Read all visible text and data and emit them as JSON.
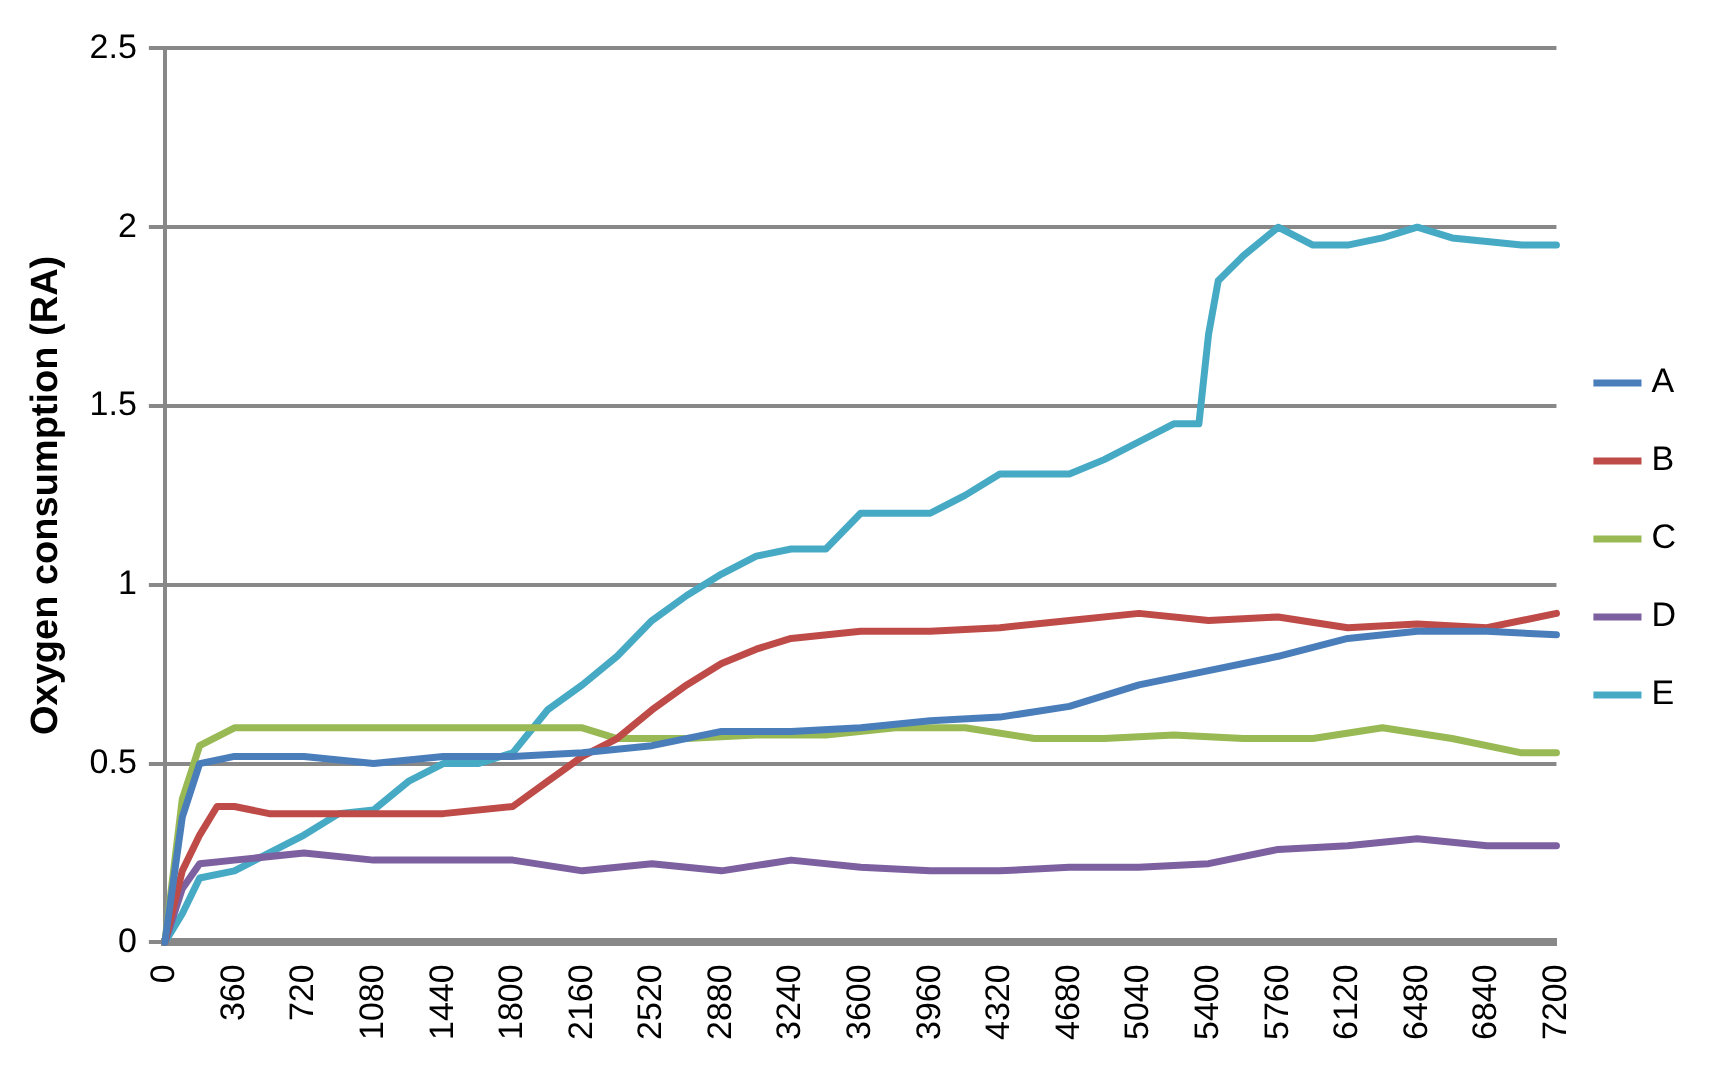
{
  "chart_data": {
    "type": "line",
    "ylabel": "Oxygen consumption (RA)",
    "xlim": [
      0,
      7200
    ],
    "xticks": [
      0,
      360,
      720,
      1080,
      1440,
      1800,
      2160,
      2520,
      2880,
      3240,
      3600,
      3960,
      4320,
      4680,
      5040,
      5400,
      5760,
      6120,
      6480,
      6840,
      7200
    ],
    "ylim": [
      0,
      2.5
    ],
    "yticks": [
      0,
      0.5,
      1,
      1.5,
      2,
      2.5
    ],
    "grid": "y",
    "legend": "right",
    "marker": "none",
    "line_style": "solid",
    "series": [
      {
        "name": "A",
        "color": "#4a7ebb",
        "x": [
          0,
          90,
          180,
          360,
          720,
          1080,
          1440,
          1800,
          2160,
          2520,
          2880,
          3240,
          3600,
          3960,
          4320,
          4680,
          5040,
          5400,
          5760,
          6120,
          6480,
          6840,
          7200
        ],
        "values": [
          0,
          0.35,
          0.5,
          0.52,
          0.52,
          0.5,
          0.52,
          0.52,
          0.53,
          0.55,
          0.59,
          0.59,
          0.6,
          0.62,
          0.63,
          0.66,
          0.72,
          0.76,
          0.8,
          0.85,
          0.87,
          0.87,
          0.86
        ]
      },
      {
        "name": "B",
        "color": "#be4b48",
        "x": [
          0,
          90,
          180,
          270,
          360,
          540,
          1080,
          1440,
          1800,
          1980,
          2160,
          2340,
          2520,
          2700,
          2880,
          3060,
          3240,
          3600,
          3960,
          4320,
          4680,
          5040,
          5400,
          5760,
          6120,
          6480,
          6840,
          7200
        ],
        "values": [
          0,
          0.2,
          0.3,
          0.38,
          0.38,
          0.36,
          0.36,
          0.36,
          0.38,
          0.45,
          0.52,
          0.57,
          0.65,
          0.72,
          0.78,
          0.82,
          0.85,
          0.87,
          0.87,
          0.88,
          0.9,
          0.92,
          0.9,
          0.91,
          0.88,
          0.89,
          0.88,
          0.92
        ]
      },
      {
        "name": "C",
        "color": "#98b954",
        "x": [
          0,
          90,
          180,
          360,
          720,
          1080,
          1440,
          1800,
          2160,
          2340,
          2700,
          3060,
          3420,
          3780,
          4140,
          4500,
          4860,
          5220,
          5580,
          5940,
          6300,
          6660,
          7020,
          7200
        ],
        "values": [
          0,
          0.4,
          0.55,
          0.6,
          0.6,
          0.6,
          0.6,
          0.6,
          0.6,
          0.57,
          0.57,
          0.58,
          0.58,
          0.6,
          0.6,
          0.57,
          0.57,
          0.58,
          0.57,
          0.57,
          0.6,
          0.57,
          0.53,
          0.53
        ]
      },
      {
        "name": "D",
        "color": "#7d60a0",
        "x": [
          0,
          90,
          180,
          360,
          720,
          1080,
          1440,
          1800,
          2160,
          2520,
          2880,
          3240,
          3600,
          3960,
          4320,
          4680,
          5040,
          5400,
          5760,
          6120,
          6480,
          6840,
          7200
        ],
        "values": [
          0,
          0.15,
          0.22,
          0.23,
          0.25,
          0.23,
          0.23,
          0.23,
          0.2,
          0.22,
          0.2,
          0.23,
          0.21,
          0.2,
          0.2,
          0.21,
          0.21,
          0.22,
          0.26,
          0.27,
          0.29,
          0.27,
          0.27
        ]
      },
      {
        "name": "E",
        "color": "#46aac5",
        "x": [
          0,
          90,
          180,
          360,
          540,
          720,
          900,
          1080,
          1260,
          1440,
          1620,
          1800,
          1980,
          2160,
          2340,
          2520,
          2700,
          2880,
          3060,
          3240,
          3420,
          3600,
          3780,
          3960,
          4140,
          4320,
          4500,
          4680,
          4860,
          5040,
          5220,
          5350,
          5400,
          5450,
          5580,
          5760,
          5940,
          6120,
          6300,
          6480,
          6660,
          6840,
          7020,
          7200
        ],
        "values": [
          0,
          0.08,
          0.18,
          0.2,
          0.25,
          0.3,
          0.36,
          0.37,
          0.45,
          0.5,
          0.5,
          0.53,
          0.65,
          0.72,
          0.8,
          0.9,
          0.97,
          1.03,
          1.08,
          1.1,
          1.1,
          1.2,
          1.2,
          1.2,
          1.25,
          1.31,
          1.31,
          1.31,
          1.35,
          1.4,
          1.45,
          1.45,
          1.7,
          1.85,
          1.92,
          2,
          1.95,
          1.95,
          1.97,
          2,
          1.97,
          1.96,
          1.95,
          1.95
        ]
      }
    ]
  }
}
